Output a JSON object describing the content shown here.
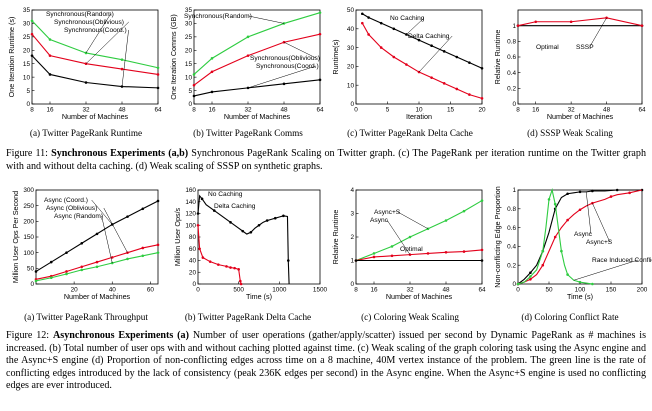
{
  "figures": [
    {
      "caption": {
        "label": "Figure 11:",
        "title": "Synchronous Experiments (a,b)",
        "text": " Synchronous PageRank Scaling on Twitter graph. (c) The PageRank per iteration runtime on the Twitter graph with and without delta caching. (d) Weak scaling of SSSP on synthetic graphs."
      },
      "panels": [
        {
          "subcaption": "(a) Twitter PageRank Runtime",
          "chart_data": {
            "type": "line",
            "xlabel": "Number of Machines",
            "ylabel": "One Iteration Runtime (s)",
            "xlim": [
              8,
              64
            ],
            "ylim": [
              0,
              35
            ],
            "xticks": [
              "8",
              "16",
              "32",
              "48",
              "64"
            ],
            "yticks": [
              "0",
              "5",
              "10",
              "15",
              "20",
              "25",
              "30",
              "35"
            ],
            "series": [
              {
                "name": "Synchronous(Random)",
                "color": "#2ecc40",
                "x": [
                  8,
                  16,
                  32,
                  48,
                  64
                ],
                "values": [
                  31,
                  24,
                  19,
                  16.5,
                  13.5
                ]
              },
              {
                "name": "Synchronous(Oblivious)",
                "color": "#e3001b",
                "x": [
                  8,
                  16,
                  32,
                  48,
                  64
                ],
                "values": [
                  26,
                  18,
                  15,
                  13,
                  11
                ]
              },
              {
                "name": "Synchronous(Coord.)",
                "color": "#000000",
                "x": [
                  8,
                  16,
                  32,
                  48,
                  64
                ],
                "values": [
                  18,
                  11,
                  8,
                  6.5,
                  6
                ]
              }
            ]
          }
        },
        {
          "subcaption": "(b) Twitter PageRank Comms",
          "chart_data": {
            "type": "line",
            "xlabel": "Number of Machines",
            "ylabel": "One Iteration Comms (GB)",
            "xlim": [
              8,
              64
            ],
            "ylim": [
              0,
              35
            ],
            "xticks": [
              "8",
              "16",
              "32",
              "48",
              "64"
            ],
            "yticks": [
              "0",
              "5",
              "10",
              "15",
              "20",
              "25",
              "30",
              "35"
            ],
            "series": [
              {
                "name": "Synchronous(Random)",
                "color": "#2ecc40",
                "x": [
                  8,
                  16,
                  32,
                  48,
                  64
                ],
                "values": [
                  11,
                  17,
                  25,
                  30,
                  34
                ]
              },
              {
                "name": "Synchronous(Oblivious)",
                "color": "#e3001b",
                "x": [
                  8,
                  16,
                  32,
                  48,
                  64
                ],
                "values": [
                  7,
                  12,
                  18,
                  23,
                  26
                ]
              },
              {
                "name": "Synchronous(Coord.)",
                "color": "#000000",
                "x": [
                  8,
                  16,
                  32,
                  48,
                  64
                ],
                "values": [
                  3,
                  4.5,
                  6,
                  7.5,
                  9
                ]
              }
            ]
          }
        },
        {
          "subcaption": "(c) Twitter PageRank Delta Cache",
          "chart_data": {
            "type": "line",
            "xlabel": "Iteration",
            "ylabel": "Runtime(s)",
            "xlim": [
              0,
              20
            ],
            "ylim": [
              0,
              50
            ],
            "xticks": [
              "0",
              "5",
              "10",
              "15",
              "20"
            ],
            "yticks": [
              "0",
              "10",
              "20",
              "30",
              "40",
              "50"
            ],
            "series": [
              {
                "name": "No Caching",
                "color": "#000000",
                "x": [
                  1,
                  2,
                  4,
                  6,
                  8,
                  10,
                  12,
                  14,
                  16,
                  18,
                  20
                ],
                "values": [
                  48,
                  46,
                  43,
                  40,
                  37,
                  34,
                  31,
                  28,
                  25,
                  22,
                  19
                ]
              },
              {
                "name": "Delta Caching",
                "color": "#e3001b",
                "x": [
                  1,
                  2,
                  4,
                  6,
                  8,
                  10,
                  12,
                  14,
                  16,
                  18,
                  20
                ],
                "values": [
                  43,
                  37,
                  30,
                  25,
                  21,
                  17,
                  14,
                  11,
                  8,
                  5,
                  3
                ]
              }
            ]
          }
        },
        {
          "subcaption": "(d) SSSP Weak Scaling",
          "chart_data": {
            "type": "line",
            "xlabel": "Number of Machines",
            "ylabel": "Relative Runtime",
            "xlim": [
              8,
              64
            ],
            "ylim": [
              0,
              1.2
            ],
            "xticks": [
              "8",
              "16",
              "32",
              "48",
              "64"
            ],
            "yticks": [
              "0",
              "0.2",
              "0.4",
              "0.6",
              "0.8",
              "1"
            ],
            "annotations": [
              "Optimal",
              "SSSP"
            ],
            "series": [
              {
                "name": "Optimal",
                "color": "#000000",
                "x": [
                  8,
                  64
                ],
                "values": [
                  1,
                  1
                ]
              },
              {
                "name": "SSSP",
                "color": "#e3001b",
                "x": [
                  8,
                  16,
                  32,
                  48,
                  64
                ],
                "values": [
                  1,
                  1.05,
                  1.05,
                  1.1,
                  1.0
                ]
              }
            ]
          }
        }
      ]
    },
    {
      "caption": {
        "label": "Figure 12:",
        "title": "Asynchronous Experiments (a)",
        "text": " Number of user operations (gather/apply/scatter) issued per second by Dynamic PageRank as # machines is increased. (b) Total number of user ops with and without caching plotted against time. (c) Weak scaling of the graph coloring task using the Async engine and the Async+S engine (d) Proportion of non-conflicting edges across time on a 8 machine, 40M vertex instance of the problem. The green line is the rate of conflicting edges introduced by the lack of consistency (peak 236K edges per second) in the Async engine. When the Async+S engine is used no conflicting edges are ever introduced."
      },
      "panels": [
        {
          "subcaption": "(a) Twitter PageRank Throughput",
          "chart_data": {
            "type": "line",
            "xlabel": "Number of Machines",
            "ylabel": "Million User Ops Per Second",
            "xlim": [
              0,
              64
            ],
            "ylim": [
              0,
              300
            ],
            "xticks": [
              "20",
              "40",
              "60"
            ],
            "yticks": [
              "0",
              "50",
              "100",
              "150",
              "200",
              "250",
              "300"
            ],
            "series": [
              {
                "name": "Async (Coord.)",
                "color": "#000000",
                "x": [
                  0,
                  8,
                  16,
                  24,
                  32,
                  40,
                  48,
                  56,
                  64
                ],
                "values": [
                  40,
                  70,
                  100,
                  130,
                  160,
                  190,
                  215,
                  240,
                  265
                ]
              },
              {
                "name": "Async (Oblivious)",
                "color": "#e3001b",
                "x": [
                  0,
                  8,
                  16,
                  24,
                  32,
                  40,
                  48,
                  56,
                  64
                ],
                "values": [
                  15,
                  25,
                  40,
                  55,
                  70,
                  85,
                  100,
                  115,
                  125
                ]
              },
              {
                "name": "Async (Random)",
                "color": "#2ecc40",
                "x": [
                  0,
                  8,
                  16,
                  24,
                  32,
                  40,
                  48,
                  56,
                  64
                ],
                "values": [
                  10,
                  20,
                  32,
                  45,
                  55,
                  67,
                  80,
                  90,
                  100
                ]
              }
            ]
          }
        },
        {
          "subcaption": "(b) Twitter PageRank Delta Cache",
          "chart_data": {
            "type": "line",
            "xlabel": "Time (s)",
            "ylabel": "Million User Ops/s",
            "xlim": [
              0,
              1500
            ],
            "ylim": [
              0,
              160
            ],
            "xticks": [
              "0",
              "500",
              "1000",
              "1500"
            ],
            "yticks": [
              "0",
              "20",
              "40",
              "60",
              "80",
              "100",
              "120",
              "140",
              "160"
            ],
            "series": [
              {
                "name": "No Caching",
                "color": "#000000",
                "x": [
                  0,
                  20,
                  50,
                  100,
                  200,
                  300,
                  400,
                  500,
                  550,
                  600,
                  650,
                  700,
                  750,
                  800,
                  850,
                  900,
                  950,
                  1000,
                  1050,
                  1100,
                  1110,
                  1120
                ],
                "values": [
                  120,
                  150,
                  145,
                  135,
                  125,
                  115,
                  105,
                  95,
                  90,
                  85,
                  88,
                  95,
                  100,
                  105,
                  108,
                  110,
                  112,
                  114,
                  116,
                  115,
                  40,
                  0
                ]
              },
              {
                "name": "Delta Caching",
                "color": "#e3001b",
                "x": [
                  0,
                  20,
                  60,
                  150,
                  250,
                  350,
                  400,
                  450,
                  500,
                  520,
                  530
                ],
                "values": [
                  100,
                  60,
                  45,
                  38,
                  33,
                  30,
                  28,
                  27,
                  25,
                  5,
                  0
                ]
              }
            ]
          }
        },
        {
          "subcaption": "(c) Coloring Weak Scaling",
          "chart_data": {
            "type": "line",
            "xlabel": "Number of Machines",
            "ylabel": "Relative Runtime",
            "xlim": [
              8,
              64
            ],
            "ylim": [
              0,
              4
            ],
            "xticks": [
              "8",
              "16",
              "32",
              "48",
              "64"
            ],
            "yticks": [
              "0",
              "1",
              "2",
              "3",
              "4"
            ],
            "annotations": [
              "Optimal"
            ],
            "series": [
              {
                "name": "Async+S",
                "color": "#2ecc40",
                "x": [
                  8,
                  16,
                  24,
                  32,
                  40,
                  48,
                  56,
                  64
                ],
                "values": [
                  1,
                  1.3,
                  1.6,
                  2.0,
                  2.35,
                  2.7,
                  3.1,
                  3.55
                ]
              },
              {
                "name": "Async",
                "color": "#e3001b",
                "x": [
                  8,
                  16,
                  24,
                  32,
                  40,
                  48,
                  56,
                  64
                ],
                "values": [
                  1,
                  1.15,
                  1.2,
                  1.25,
                  1.3,
                  1.35,
                  1.38,
                  1.45
                ]
              },
              {
                "name": "Optimal",
                "color": "#000000",
                "x": [
                  8,
                  64
                ],
                "values": [
                  1,
                  1
                ]
              }
            ]
          }
        },
        {
          "subcaption": "(d) Coloring Conflict Rate",
          "chart_data": {
            "type": "line",
            "xlabel": "Time (s)",
            "ylabel": "Non-conflicting Edge Proportion",
            "xlim": [
              0,
              200
            ],
            "ylim": [
              0,
              1
            ],
            "xticks": [
              "0",
              "50",
              "100",
              "150",
              "200"
            ],
            "yticks": [
              "0",
              "0.2",
              "0.4",
              "0.6",
              "0.8",
              "1"
            ],
            "annotations": [
              "Race Induced Conflicts"
            ],
            "series": [
              {
                "name": "Async",
                "color": "#000000",
                "x": [
                  0,
                  10,
                  20,
                  30,
                  40,
                  50,
                  60,
                  70,
                  80,
                  90,
                  100,
                  110,
                  120,
                  140,
                  160,
                  180,
                  200
                ],
                "values": [
                  0,
                  0.05,
                  0.12,
                  0.2,
                  0.35,
                  0.55,
                  0.8,
                  0.92,
                  0.96,
                  0.97,
                  0.98,
                  0.98,
                  0.99,
                  0.99,
                  1,
                  1,
                  1
                ]
              },
              {
                "name": "Async+S",
                "color": "#e3001b",
                "x": [
                  0,
                  10,
                  20,
                  30,
                  40,
                  50,
                  60,
                  70,
                  80,
                  90,
                  100,
                  110,
                  120,
                  140,
                  150,
                  160,
                  180,
                  200
                ],
                "values": [
                  0,
                  0.02,
                  0.05,
                  0.1,
                  0.2,
                  0.35,
                  0.5,
                  0.6,
                  0.68,
                  0.74,
                  0.79,
                  0.83,
                  0.86,
                  0.9,
                  0.93,
                  0.95,
                  0.97,
                  1
                ]
              },
              {
                "name": "Race Induced Conflicts",
                "color": "#2ecc40",
                "x": [
                  0,
                  10,
                  20,
                  30,
                  40,
                  45,
                  50,
                  55,
                  60,
                  65,
                  70,
                  75,
                  80,
                  90,
                  100,
                  110,
                  120
                ],
                "values": [
                  0,
                  0.02,
                  0.08,
                  0.15,
                  0.35,
                  0.6,
                  0.9,
                  1.0,
                  0.85,
                  0.6,
                  0.35,
                  0.2,
                  0.1,
                  0.04,
                  0.02,
                  0.01,
                  0
                ]
              }
            ]
          }
        }
      ]
    }
  ]
}
